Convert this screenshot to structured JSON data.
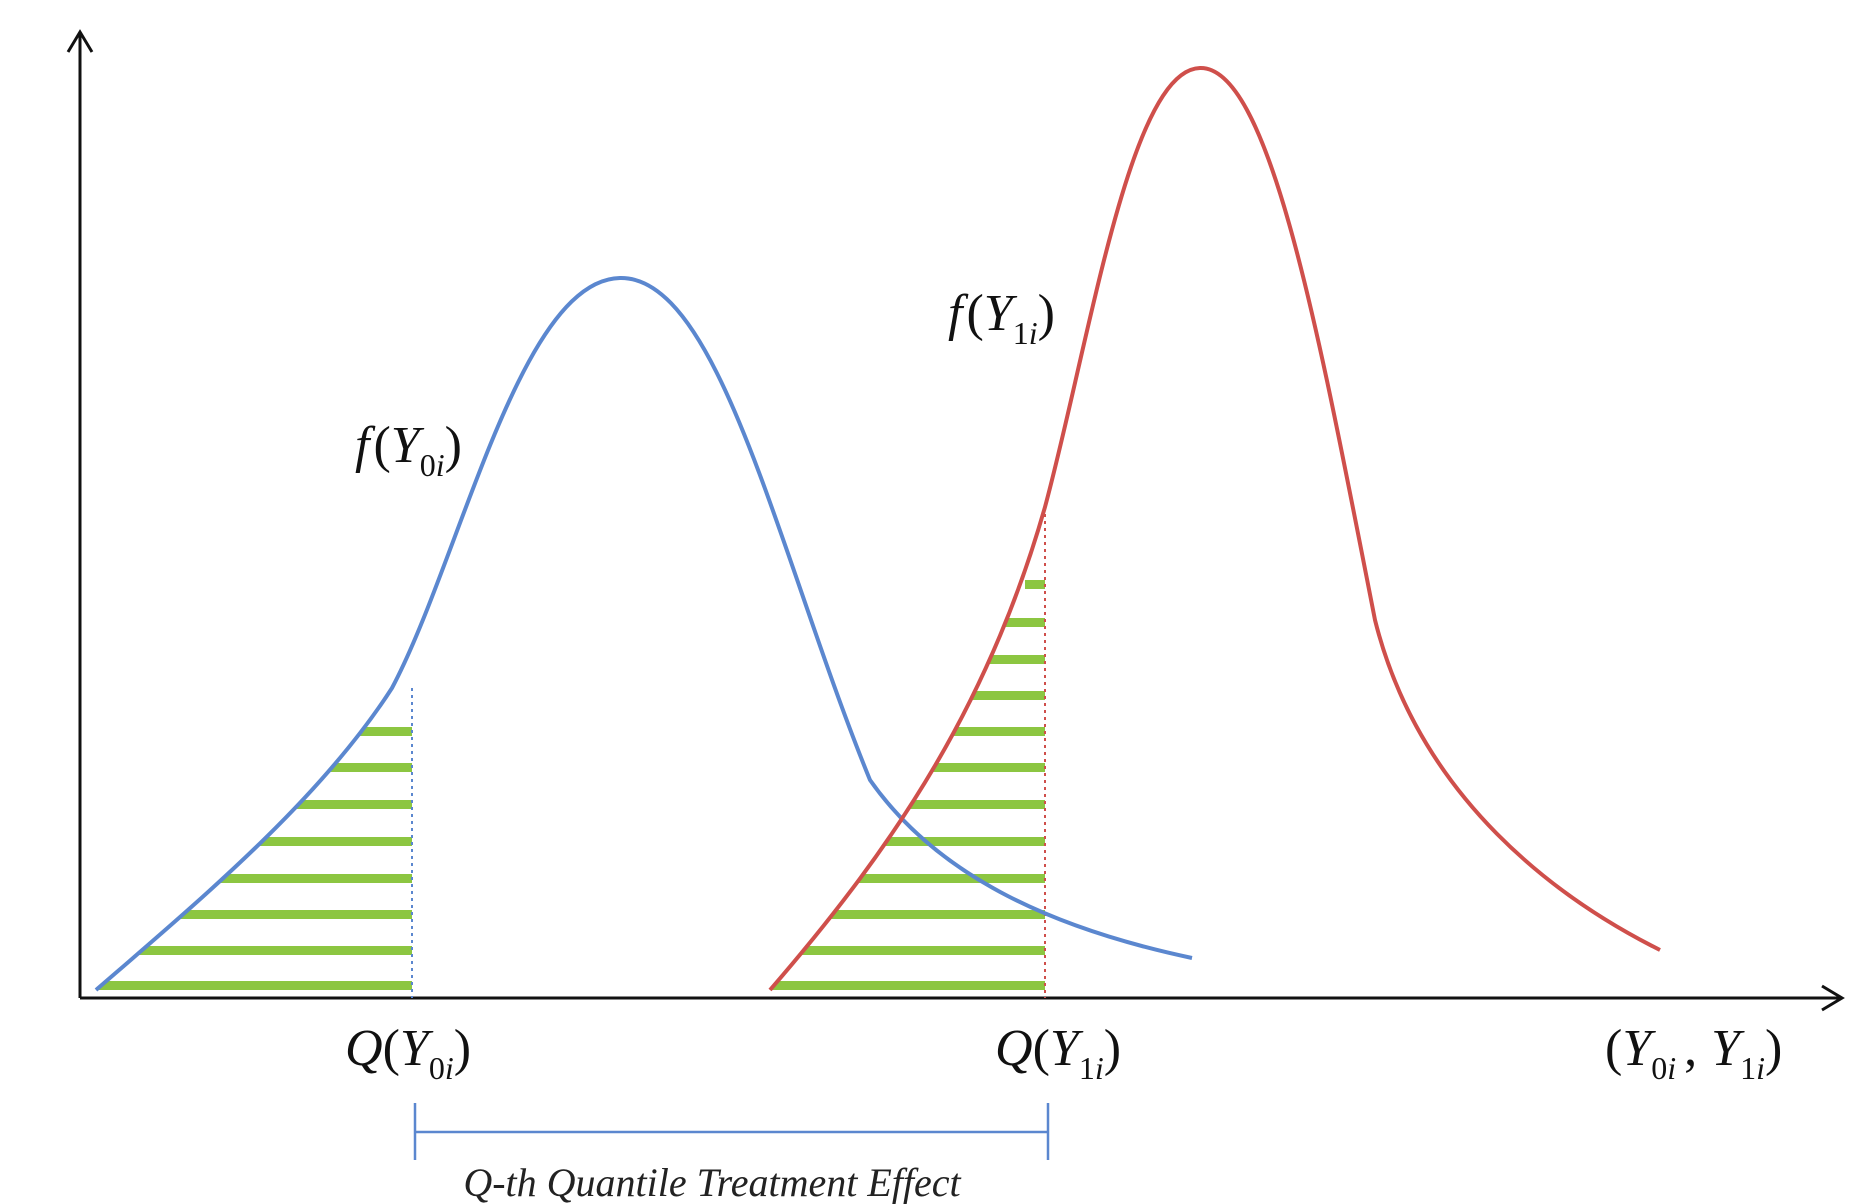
{
  "diagram": {
    "curve_labels": {
      "f0": {
        "func": "f",
        "open": "(",
        "var": "Y",
        "sub": "0",
        "subvar": "i",
        "close": ")"
      },
      "f1": {
        "func": "f",
        "open": "(",
        "var": "Y",
        "sub": "1",
        "subvar": "i",
        "close": ")"
      }
    },
    "quantile_labels": {
      "q0": {
        "func": "Q",
        "open": "(",
        "var": "Y",
        "sub": "0",
        "subvar": "i",
        "close": ")"
      },
      "q1": {
        "func": "Q",
        "open": "(",
        "var": "Y",
        "sub": "1",
        "subvar": "i",
        "close": ")"
      }
    },
    "axis_label": {
      "open": "(",
      "var1": "Y",
      "sub1": "0",
      "subvar1": "i",
      "comma": ",",
      "var2": "Y",
      "sub2": "1",
      "subvar2": "i",
      "close": ")"
    },
    "effect_label": "Q-th Quantile Treatment Effect",
    "colors": {
      "axis": "#111111",
      "control_curve": "#5b87cf",
      "treated_curve": "#cf4f4b",
      "hatch": "#8cc641",
      "bracket": "#5b87cf"
    }
  }
}
